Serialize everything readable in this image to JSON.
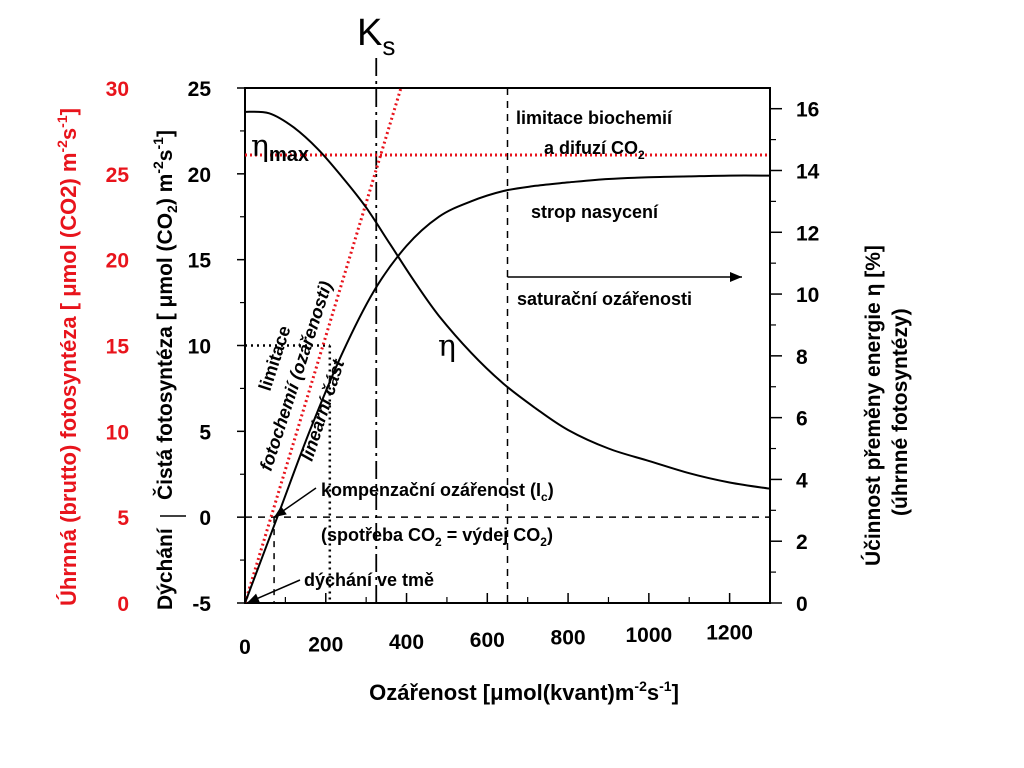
{
  "chart_data": {
    "type": "line",
    "title": "",
    "ks_label": "K",
    "ks_sub": "s",
    "xlabel": {
      "pre": "Ozářenost [",
      "mu": "μ",
      "mid": "mol(kvant)m",
      "sup1": "-2",
      "mid2": "s",
      "sup2": "-1",
      "post": "]"
    },
    "ylabel_inner": {
      "p1": "Čistá fotosyntéza [ ",
      "mu": "μ",
      "p2": "mol (CO",
      "sub": "2",
      "p3": ") m",
      "sup1": "-2",
      "p4": "s",
      "sup2": "-1",
      "p5": "]"
    },
    "ylabel_outer": {
      "p1": "Úhrnná (brutto) fotosyntéza [ ",
      "mu": "μ",
      "p2": "mol (CO2) m",
      "sup1": "-2",
      "p3": "s",
      "sup2": "-1",
      "p4": "]"
    },
    "ylabel_right1": {
      "p1": "Účinnost přeměny energie ",
      "eta": "η",
      "p2": "  [%]"
    },
    "ylabel_right2": "(úhrnné fotosyntézy)",
    "dychani_label": "Dýchání",
    "xlim": [
      0,
      1300
    ],
    "ylim": [
      -5,
      25
    ],
    "y2lim": [
      0,
      16.67
    ],
    "x_ticks": [
      "0",
      "200",
      "400",
      "600",
      "800",
      "1000",
      "1200"
    ],
    "y_ticks": [
      "-5",
      "0",
      "5",
      "10",
      "15",
      "20",
      "25"
    ],
    "y_outer_ticks": [
      "0",
      "5",
      "10",
      "15",
      "20",
      "25",
      "30"
    ],
    "y2_ticks": [
      "0",
      "2",
      "4",
      "6",
      "8",
      "10",
      "12",
      "14",
      "16"
    ],
    "colors": {
      "red": "#e8141c",
      "black": "#000000"
    },
    "series": [
      {
        "name": "",
        "x": [
          0,
          80,
          160,
          240,
          320,
          400,
          480,
          560,
          640,
          720,
          800,
          900,
          1000,
          1100,
          1200,
          1300
        ],
        "values": [
          -5,
          0,
          5,
          9.5,
          13.2,
          15.8,
          17.5,
          18.4,
          19.0,
          19.3,
          19.5,
          19.7,
          19.8,
          19.85,
          19.9,
          19.9
        ]
      },
      {
        "name": "η",
        "x": [
          0,
          60,
          120,
          180,
          240,
          300,
          360,
          420,
          480,
          560,
          640,
          720,
          800,
          900,
          1000,
          1100,
          1200,
          1300
        ],
        "values": [
          15.9,
          15.85,
          15.4,
          14.7,
          13.8,
          12.8,
          11.6,
          10.4,
          9.3,
          8.1,
          7.1,
          6.3,
          5.6,
          5.0,
          4.6,
          4.2,
          3.9,
          3.7
        ]
      }
    ],
    "initial_slope": {
      "x": [
        0,
        390
      ],
      "y": [
        -5,
        25.3
      ]
    },
    "eta_max": 14.5,
    "eta_max_label": {
      "main": "η",
      "sub": "max"
    },
    "eta_label": "η",
    "ks_x": 325,
    "ic_x": 72,
    "linear_end_x": 210,
    "sat_x": 650,
    "annotations": {
      "limitace_bio_1": "limitace biochemií",
      "limitace_bio_2_pre": "a difuzí CO",
      "limitace_bio_2_sub": "2",
      "strop": "strop nasycení",
      "saturacni": "saturační ozářenosti",
      "limitace_foto_1": "limitace",
      "limitace_foto_2": "fotochemií (ozářenosti)",
      "linearni": "lineární část",
      "kompenzacni_pre": "kompenzační ozářenost  (I",
      "kompenzacni_sub": "c",
      "kompenzacni_post": ")",
      "spotreba_pre": "(spotřeba CO",
      "spotreba_sub1": "2",
      "spotreba_mid": " = výdej CO",
      "spotreba_sub2": "2",
      "spotreba_post": ")",
      "dychani_tme": "dýchání ve tmě"
    }
  }
}
